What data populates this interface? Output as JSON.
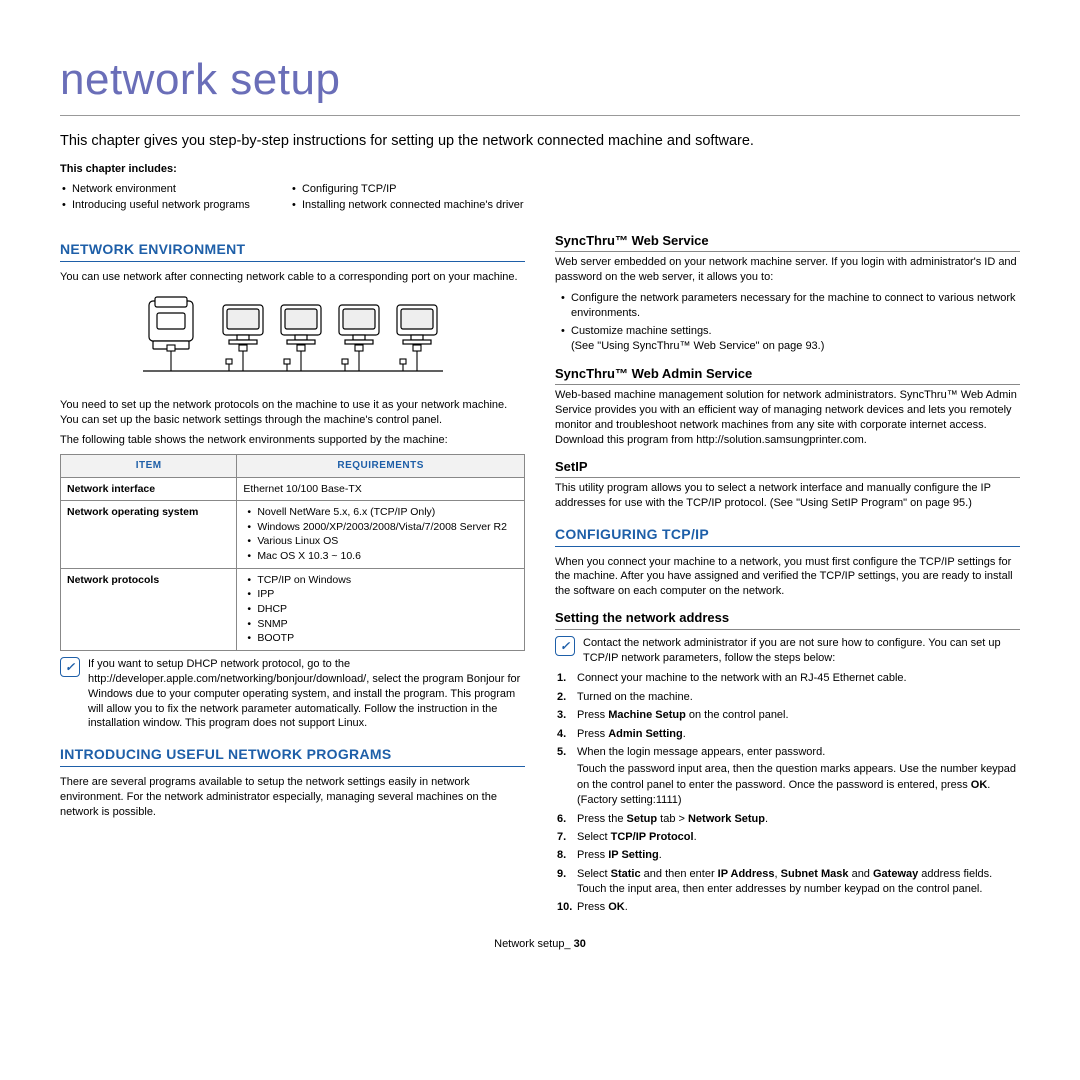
{
  "page": {
    "title": "network setup",
    "intro": "This chapter gives you step-by-step instructions for setting up the network connected machine and software.",
    "includes_heading": "This chapter includes:",
    "includes_left": [
      "Network environment",
      "Introducing useful network programs"
    ],
    "includes_right": [
      "Configuring TCP/IP",
      "Installing network connected machine's driver"
    ],
    "footer_label": "Network setup_",
    "footer_page": "30"
  },
  "colors": {
    "heading_blue": "#1e5fa8",
    "title_purple": "#6a6eb8",
    "rule_gray": "#888888",
    "table_header_bg": "#f2f2f2"
  },
  "network_env": {
    "heading": "NETWORK ENVIRONMENT",
    "p1": "You can use network after connecting network cable to a corresponding port on your machine.",
    "p2": "You need to set up the network protocols on the machine to use it as your network machine. You can set up the basic network settings through the machine's control panel.",
    "p3": "The following table shows the network environments supported by the machine:",
    "table": {
      "col1": "ITEM",
      "col2": "REQUIREMENTS",
      "rows": [
        {
          "label": "Network interface",
          "items": [
            "Ethernet 10/100 Base-TX"
          ],
          "plain": true
        },
        {
          "label": "Network operating system",
          "items": [
            "Novell NetWare 5.x, 6.x (TCP/IP Only)",
            "Windows 2000/XP/2003/2008/Vista/7/2008 Server R2",
            "Various Linux OS",
            "Mac OS X 10.3 ~ 10.6"
          ]
        },
        {
          "label": "Network protocols",
          "items": [
            "TCP/IP on Windows",
            "IPP",
            "DHCP",
            "SNMP",
            "BOOTP"
          ]
        }
      ]
    },
    "note": "If you want to setup DHCP network protocol, go to the http://developer.apple.com/networking/bonjour/download/, select the program Bonjour for Windows due to your computer operating system, and install the program. This program will allow you to fix the network parameter automatically. Follow the instruction in the installation window. This program does not support Linux."
  },
  "useful_programs": {
    "heading": "INTRODUCING USEFUL NETWORK PROGRAMS",
    "p1": "There are several programs available to setup the network settings easily in network environment. For the network administrator especially, managing several machines on the network is possible."
  },
  "syncthru_web": {
    "heading": "SyncThru™ Web Service",
    "p1": "Web server embedded on your network machine server. If you login with administrator's ID and password on the web server, it allows you to:",
    "items": [
      "Configure the network parameters necessary for the machine to connect to various network environments.",
      "Customize machine settings.\n(See \"Using SyncThru™ Web Service\" on page 93.)"
    ]
  },
  "syncthru_admin": {
    "heading": "SyncThru™ Web Admin Service",
    "p1": "Web-based machine management solution for network administrators. SyncThru™ Web Admin Service provides you with an efficient way of managing network devices and lets you remotely monitor and troubleshoot network machines from any site with corporate internet access. Download this program from http://solution.samsungprinter.com."
  },
  "setip": {
    "heading": "SetIP",
    "p1": "This utility program allows you to select a network interface and manually configure the IP addresses for use with the TCP/IP protocol. (See \"Using SetIP Program\" on page 95.)"
  },
  "tcpip": {
    "heading": "CONFIGURING TCP/IP",
    "p1": "When you connect your machine to a network, you must first configure the TCP/IP settings for the machine. After you have assigned and verified the TCP/IP settings, you are ready to install the software on each computer on the network.",
    "sub_heading": "Setting the network address",
    "note": "Contact the network administrator if you are not sure how to configure. You can set up TCP/IP network parameters, follow the steps below:",
    "steps": [
      "Connect your machine to the network with an RJ-45 Ethernet cable.",
      "Turned on the machine.",
      "Press <b>Machine Setup</b> on the control panel.",
      "Press <b>Admin Setting</b>.",
      "When the login message appears, enter password.|Touch the password input area, then the question marks appears. Use the number keypad on the control panel to enter the password. Once the password is entered, press <b>OK</b>. (Factory setting:1111)",
      "Press the <b>Setup</b> tab > <b>Network Setup</b>.",
      "Select <b>TCP/IP Protocol</b>.",
      "Press <b>IP Setting</b>.",
      "Select <b>Static</b> and then enter <b>IP Address</b>, <b>Subnet Mask</b> and <b>Gateway</b> address fields. Touch the input area, then enter addresses by number keypad on the control panel.",
      "Press <b>OK</b>."
    ]
  }
}
